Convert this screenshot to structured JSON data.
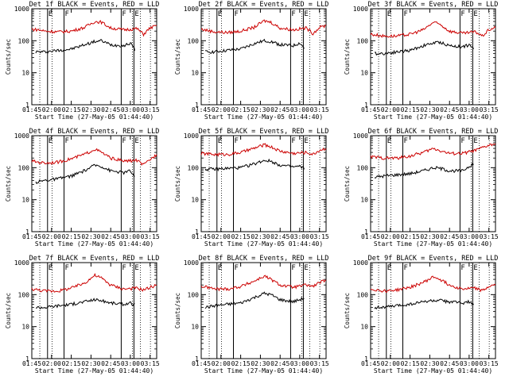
{
  "figure": {
    "colors": {
      "background": "#ffffff",
      "axes": "#000000",
      "events": "#000000",
      "lld": "#cc0000"
    }
  },
  "chart_data": [
    {
      "type": "line",
      "title": "Det 1f BLACK = Events, RED = LLD",
      "xlabel": "Start Time (27-May-05 01:44:40)",
      "ylabel": "Counts/sec",
      "yscale": "log",
      "ylim": [
        1,
        1000
      ],
      "xlim_minutes": [
        0,
        95
      ],
      "xticks": [
        "01:45",
        "02:00",
        "02:15",
        "02:30",
        "02:45",
        "03:00",
        "03:15"
      ],
      "yticks": [
        "1",
        "10",
        "100",
        "1000"
      ],
      "flags": [
        "E",
        "F",
        "F",
        "E"
      ],
      "series": [
        {
          "name": "Events",
          "color": "#000000",
          "x": [
            3,
            10,
            20,
            30,
            40,
            48,
            53,
            60,
            70,
            75,
            79,
            82,
            85
          ],
          "values": [
            45,
            45,
            50,
            55,
            75,
            95,
            100,
            75,
            70,
            85,
            50,
            null,
            55
          ]
        },
        {
          "name": "LLD",
          "color": "#cc0000",
          "x": [
            0,
            5,
            10,
            20,
            30,
            40,
            48,
            53,
            60,
            70,
            80,
            85,
            90,
            95
          ],
          "values": [
            230,
            220,
            200,
            190,
            200,
            260,
            400,
            380,
            250,
            220,
            240,
            160,
            250,
            300
          ]
        }
      ]
    },
    {
      "type": "line",
      "title": "Det 2f BLACK = Events, RED = LLD",
      "xlabel": "Start Time (27-May-05 01:44:40)",
      "ylabel": "Counts/sec",
      "yscale": "log",
      "ylim": [
        1,
        1000
      ],
      "xlim_minutes": [
        0,
        95
      ],
      "xticks": [
        "01:45",
        "02:00",
        "02:15",
        "02:30",
        "02:45",
        "03:00",
        "03:15"
      ],
      "yticks": [
        "1",
        "10",
        "100",
        "1000"
      ],
      "flags": [
        "E",
        "F",
        "F",
        "E"
      ],
      "series": [
        {
          "name": "Events",
          "color": "#000000",
          "x": [
            3,
            10,
            20,
            30,
            40,
            48,
            53,
            60,
            70,
            75,
            79,
            82,
            85
          ],
          "values": [
            45,
            45,
            50,
            55,
            80,
            100,
            95,
            75,
            70,
            85,
            55,
            null,
            55
          ]
        },
        {
          "name": "LLD",
          "color": "#cc0000",
          "x": [
            0,
            5,
            10,
            20,
            30,
            40,
            48,
            53,
            60,
            70,
            80,
            85,
            90,
            95
          ],
          "values": [
            230,
            210,
            190,
            180,
            200,
            260,
            420,
            380,
            250,
            220,
            250,
            170,
            260,
            300
          ]
        }
      ]
    },
    {
      "type": "line",
      "title": "Det 3f BLACK = Events, RED = LLD",
      "xlabel": "Start Time (27-May-05 01:44:40)",
      "ylabel": "Counts/sec",
      "yscale": "log",
      "ylim": [
        1,
        1000
      ],
      "xlim_minutes": [
        0,
        95
      ],
      "xticks": [
        "01:45",
        "02:00",
        "02:15",
        "02:30",
        "02:45",
        "03:00",
        "03:15"
      ],
      "yticks": [
        "1",
        "10",
        "100",
        "1000"
      ],
      "flags": [
        "E",
        "F",
        "F",
        "E"
      ],
      "series": [
        {
          "name": "Events",
          "color": "#000000",
          "x": [
            3,
            10,
            20,
            30,
            40,
            48,
            53,
            60,
            70,
            75,
            79,
            82,
            85
          ],
          "values": [
            40,
            40,
            45,
            50,
            70,
            85,
            90,
            70,
            65,
            75,
            50,
            null,
            50
          ]
        },
        {
          "name": "LLD",
          "color": "#cc0000",
          "x": [
            0,
            5,
            10,
            20,
            30,
            40,
            48,
            53,
            60,
            70,
            80,
            85,
            90,
            95
          ],
          "values": [
            160,
            150,
            140,
            140,
            160,
            220,
            380,
            320,
            200,
            170,
            190,
            140,
            220,
            260
          ]
        }
      ]
    },
    {
      "type": "line",
      "title": "Det 4f BLACK = Events, RED = LLD",
      "xlabel": "Start Time (27-May-05 01:44:40)",
      "ylabel": "Counts/sec",
      "yscale": "log",
      "ylim": [
        1,
        1000
      ],
      "xlim_minutes": [
        0,
        95
      ],
      "xticks": [
        "01:45",
        "02:00",
        "02:15",
        "02:30",
        "02:45",
        "03:00",
        "03:15"
      ],
      "yticks": [
        "1",
        "10",
        "100",
        "1000"
      ],
      "flags": [
        "E",
        "F",
        "F",
        "E"
      ],
      "series": [
        {
          "name": "Events",
          "color": "#000000",
          "x": [
            3,
            10,
            20,
            30,
            40,
            48,
            53,
            60,
            70,
            75,
            79,
            82,
            85
          ],
          "values": [
            35,
            40,
            45,
            55,
            80,
            120,
            110,
            80,
            70,
            80,
            45,
            null,
            40
          ]
        },
        {
          "name": "LLD",
          "color": "#cc0000",
          "x": [
            0,
            5,
            10,
            20,
            30,
            40,
            48,
            53,
            60,
            70,
            80,
            85,
            90,
            95
          ],
          "values": [
            160,
            150,
            140,
            150,
            190,
            260,
            380,
            300,
            200,
            160,
            170,
            120,
            180,
            260
          ]
        }
      ]
    },
    {
      "type": "line",
      "title": "Det 5f BLACK = Events, RED = LLD",
      "xlabel": "Start Time (27-May-05 01:44:40)",
      "ylabel": "Counts/sec",
      "yscale": "log",
      "ylim": [
        1,
        1000
      ],
      "xlim_minutes": [
        0,
        95
      ],
      "xticks": [
        "01:45",
        "02:00",
        "02:15",
        "02:30",
        "02:45",
        "03:00",
        "03:15"
      ],
      "yticks": [
        "1",
        "10",
        "100",
        "1000"
      ],
      "flags": [
        "E",
        "F",
        "F",
        "E"
      ],
      "series": [
        {
          "name": "Events",
          "color": "#000000",
          "x": [
            3,
            10,
            20,
            30,
            40,
            48,
            53,
            60,
            70,
            75,
            79,
            82,
            85
          ],
          "values": [
            90,
            90,
            95,
            100,
            130,
            170,
            160,
            120,
            105,
            110,
            90,
            null,
            95
          ]
        },
        {
          "name": "LLD",
          "color": "#cc0000",
          "x": [
            0,
            5,
            10,
            20,
            30,
            40,
            48,
            53,
            60,
            70,
            80,
            85,
            90,
            95
          ],
          "values": [
            280,
            270,
            260,
            260,
            300,
            400,
            520,
            450,
            330,
            280,
            300,
            260,
            350,
            400
          ]
        }
      ]
    },
    {
      "type": "line",
      "title": "Det 6f BLACK = Events, RED = LLD",
      "xlabel": "Start Time (27-May-05 01:44:40)",
      "ylabel": "Counts/sec",
      "yscale": "log",
      "ylim": [
        1,
        1000
      ],
      "xlim_minutes": [
        0,
        95
      ],
      "xticks": [
        "01:45",
        "02:00",
        "02:15",
        "02:30",
        "02:45",
        "03:00",
        "03:15"
      ],
      "yticks": [
        "1",
        "10",
        "100",
        "1000"
      ],
      "flags": [
        "E",
        "F",
        "F",
        "E"
      ],
      "series": [
        {
          "name": "Events",
          "color": "#000000",
          "x": [
            3,
            10,
            20,
            30,
            40,
            48,
            53,
            60,
            70,
            75,
            79,
            82,
            85
          ],
          "values": [
            50,
            55,
            60,
            65,
            80,
            100,
            95,
            80,
            80,
            110,
            130,
            null,
            150
          ]
        },
        {
          "name": "LLD",
          "color": "#cc0000",
          "x": [
            0,
            5,
            10,
            20,
            30,
            40,
            48,
            53,
            60,
            70,
            80,
            85,
            90,
            95
          ],
          "values": [
            220,
            210,
            200,
            200,
            230,
            300,
            400,
            340,
            280,
            280,
            350,
            420,
            500,
            560
          ]
        }
      ]
    },
    {
      "type": "line",
      "title": "Det 7f BLACK = Events, RED = LLD",
      "xlabel": "Start Time (27-May-05 01:44:40)",
      "ylabel": "Counts/sec",
      "yscale": "log",
      "ylim": [
        1,
        1000
      ],
      "xlim_minutes": [
        0,
        95
      ],
      "xticks": [
        "01:45",
        "02:00",
        "02:15",
        "02:30",
        "02:45",
        "03:00",
        "03:15"
      ],
      "yticks": [
        "1",
        "10",
        "100",
        "1000"
      ],
      "flags": [
        "E",
        "F",
        "F",
        "E"
      ],
      "series": [
        {
          "name": "Events",
          "color": "#000000",
          "x": [
            3,
            10,
            20,
            30,
            40,
            48,
            53,
            60,
            70,
            75,
            79,
            82,
            85
          ],
          "values": [
            40,
            40,
            45,
            50,
            60,
            70,
            65,
            55,
            50,
            55,
            45,
            null,
            45
          ]
        },
        {
          "name": "LLD",
          "color": "#cc0000",
          "x": [
            0,
            5,
            10,
            20,
            30,
            40,
            48,
            53,
            60,
            70,
            80,
            85,
            90,
            95
          ],
          "values": [
            150,
            140,
            130,
            130,
            160,
            230,
            400,
            330,
            200,
            150,
            160,
            140,
            170,
            200
          ]
        }
      ]
    },
    {
      "type": "line",
      "title": "Det 8f BLACK = Events, RED = LLD",
      "xlabel": "Start Time (27-May-05 01:44:40)",
      "ylabel": "Counts/sec",
      "yscale": "log",
      "ylim": [
        1,
        1000
      ],
      "xlim_minutes": [
        0,
        95
      ],
      "xticks": [
        "01:45",
        "02:00",
        "02:15",
        "02:30",
        "02:45",
        "03:00",
        "03:15"
      ],
      "yticks": [
        "1",
        "10",
        "100",
        "1000"
      ],
      "flags": [
        "E",
        "F",
        "F",
        "E"
      ],
      "series": [
        {
          "name": "Events",
          "color": "#000000",
          "x": [
            3,
            10,
            20,
            30,
            40,
            48,
            53,
            60,
            70,
            75,
            79,
            82,
            85
          ],
          "values": [
            40,
            45,
            50,
            55,
            80,
            110,
            100,
            70,
            60,
            70,
            80,
            null,
            90
          ]
        },
        {
          "name": "LLD",
          "color": "#cc0000",
          "x": [
            0,
            5,
            10,
            20,
            30,
            40,
            48,
            53,
            60,
            70,
            80,
            85,
            90,
            95
          ],
          "values": [
            180,
            170,
            150,
            150,
            180,
            260,
            380,
            300,
            200,
            170,
            200,
            180,
            240,
            280
          ]
        }
      ]
    },
    {
      "type": "line",
      "title": "Det 9f BLACK = Events, RED = LLD",
      "xlabel": "Start Time (27-May-05 01:44:40)",
      "ylabel": "Counts/sec",
      "yscale": "log",
      "ylim": [
        1,
        1000
      ],
      "xlim_minutes": [
        0,
        95
      ],
      "xticks": [
        "01:45",
        "02:00",
        "02:15",
        "02:30",
        "02:45",
        "03:00",
        "03:15"
      ],
      "yticks": [
        "1",
        "10",
        "100",
        "1000"
      ],
      "flags": [
        "E",
        "F",
        "F",
        "E"
      ],
      "series": [
        {
          "name": "Events",
          "color": "#000000",
          "x": [
            3,
            10,
            20,
            30,
            40,
            48,
            53,
            60,
            70,
            75,
            79,
            82,
            85
          ],
          "values": [
            40,
            40,
            45,
            50,
            60,
            65,
            65,
            60,
            55,
            60,
            45,
            null,
            45
          ]
        },
        {
          "name": "LLD",
          "color": "#cc0000",
          "x": [
            0,
            5,
            10,
            20,
            30,
            40,
            48,
            53,
            60,
            70,
            80,
            85,
            90,
            95
          ],
          "values": [
            150,
            140,
            130,
            140,
            170,
            240,
            360,
            300,
            200,
            150,
            160,
            130,
            180,
            200
          ]
        }
      ]
    }
  ]
}
